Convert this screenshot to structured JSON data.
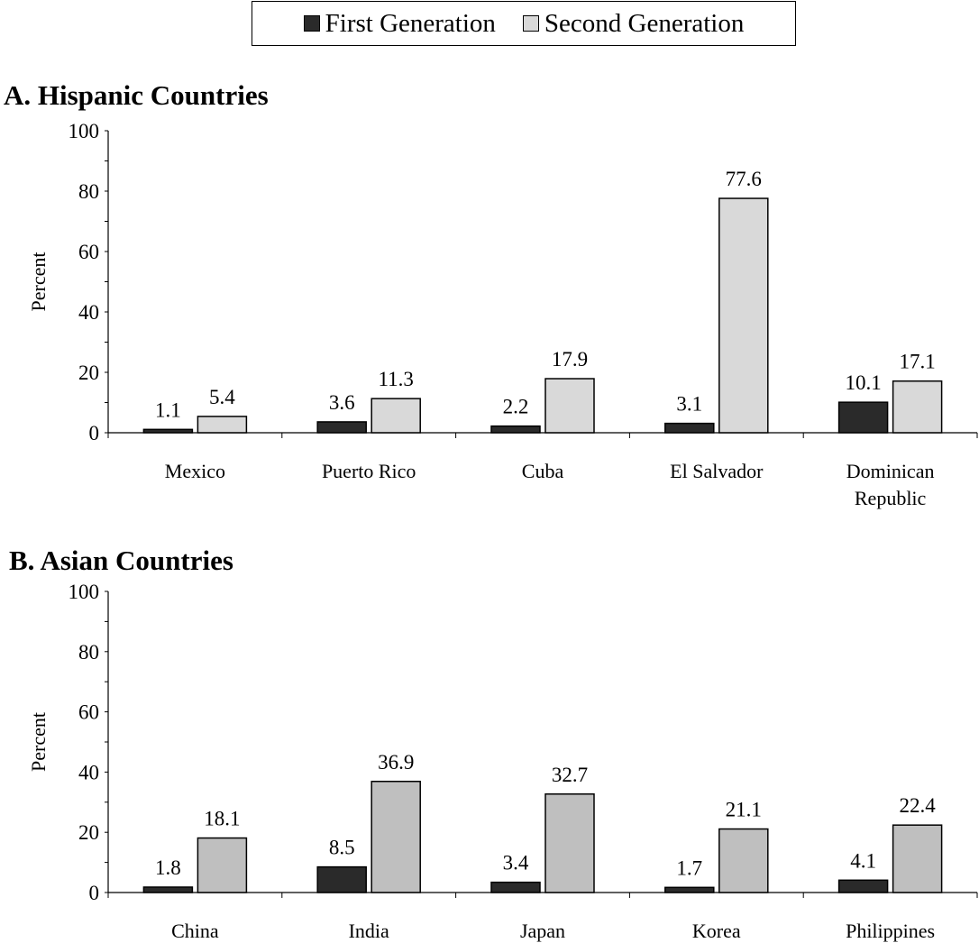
{
  "legend": [
    {
      "label": "First Generation",
      "color": "#2a2a2a"
    },
    {
      "label": "Second Generation",
      "color": "#d9d9d9"
    }
  ],
  "chart_data": [
    {
      "type": "bar",
      "title": "A. Hispanic Countries",
      "ylabel": "Percent",
      "ylim": [
        0,
        100
      ],
      "yticks": [
        0,
        20,
        40,
        60,
        80,
        100
      ],
      "categories": [
        [
          "Mexico"
        ],
        [
          "Puerto Rico"
        ],
        [
          "Cuba"
        ],
        [
          "El Salvador"
        ],
        [
          "Dominican",
          "Republic"
        ]
      ],
      "series": [
        {
          "name": "First Generation",
          "color": "#2a2a2a",
          "values": [
            1.1,
            3.6,
            2.2,
            3.1,
            10.1
          ]
        },
        {
          "name": "Second Generation",
          "color": "#d9d9d9",
          "values": [
            5.4,
            11.3,
            17.9,
            77.6,
            17.1
          ]
        }
      ]
    },
    {
      "type": "bar",
      "title": "B. Asian Countries",
      "ylabel": "Percent",
      "ylim": [
        0,
        100
      ],
      "yticks": [
        0,
        20,
        40,
        60,
        80,
        100
      ],
      "categories": [
        [
          "China"
        ],
        [
          "India"
        ],
        [
          "Japan"
        ],
        [
          "Korea"
        ],
        [
          "Philippines"
        ]
      ],
      "series": [
        {
          "name": "First Generation",
          "color": "#2a2a2a",
          "values": [
            1.8,
            8.5,
            3.4,
            1.7,
            4.1
          ]
        },
        {
          "name": "Second Generation",
          "color": "#bfbfbf",
          "values": [
            18.1,
            36.9,
            32.7,
            21.1,
            22.4
          ]
        }
      ]
    }
  ]
}
